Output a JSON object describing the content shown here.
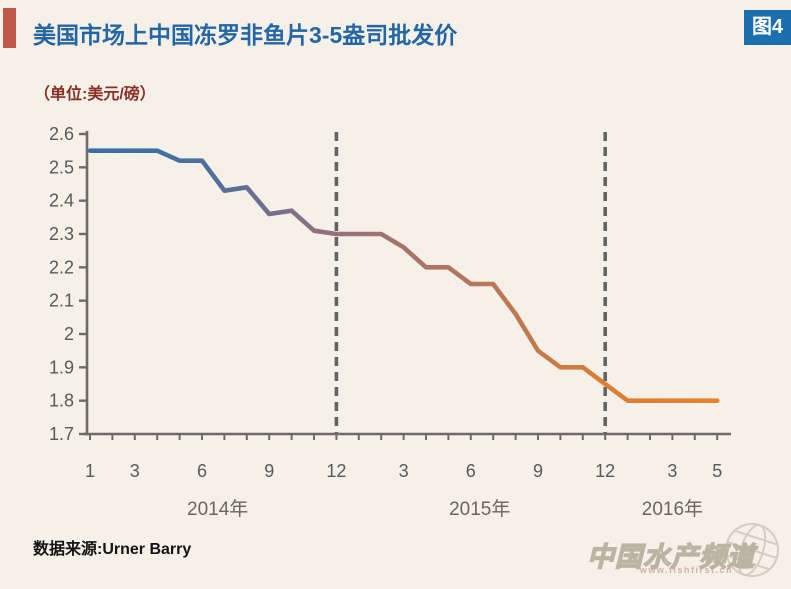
{
  "page": {
    "background": "#f5f1e8"
  },
  "header": {
    "title": "美国市场上中国冻罗非鱼片3-5盎司批发价",
    "badge": "图4",
    "accent_color": "#bf5a4b",
    "title_color": "#2465a5",
    "badge_bg": "#1b6fae",
    "badge_text_color": "#ffffff"
  },
  "subtitle": {
    "text": "（单位:美元/磅）",
    "color": "#8a2f28"
  },
  "footer": {
    "source": "数据来源:Urner Barry"
  },
  "watermark": {
    "title": "中国水产频道",
    "url": "www.fishfirst.cn",
    "icon": "globe-icon"
  },
  "chart_data": {
    "type": "line",
    "title": "美国市场上中国冻罗非鱼片3-5盎司批发价",
    "ylabel": "美元/磅",
    "xlabel": "",
    "ylim": [
      1.7,
      2.6
    ],
    "grid": false,
    "legend": "none",
    "months": [
      "2014-01",
      "2014-02",
      "2014-03",
      "2014-04",
      "2014-05",
      "2014-06",
      "2014-07",
      "2014-08",
      "2014-09",
      "2014-10",
      "2014-11",
      "2014-12",
      "2015-01",
      "2015-02",
      "2015-03",
      "2015-04",
      "2015-05",
      "2015-06",
      "2015-07",
      "2015-08",
      "2015-09",
      "2015-10",
      "2015-11",
      "2015-12",
      "2016-01",
      "2016-02",
      "2016-03",
      "2016-04",
      "2016-05"
    ],
    "values": [
      2.55,
      2.55,
      2.55,
      2.55,
      2.52,
      2.52,
      2.43,
      2.44,
      2.36,
      2.37,
      2.31,
      2.3,
      2.3,
      2.3,
      2.26,
      2.2,
      2.2,
      2.15,
      2.15,
      2.06,
      1.95,
      1.9,
      1.9,
      1.85,
      1.8,
      1.8,
      1.8,
      1.8,
      1.8
    ],
    "y_ticks": [
      "2.6",
      "2.5",
      "2.4",
      "2.3",
      "2.2",
      "2.1",
      "2",
      "1.9",
      "1.8",
      "1.7"
    ],
    "x_tick_labels": [
      {
        "idx": 0,
        "label": "1"
      },
      {
        "idx": 2,
        "label": "3"
      },
      {
        "idx": 5,
        "label": "6"
      },
      {
        "idx": 8,
        "label": "9"
      },
      {
        "idx": 11,
        "label": "12"
      },
      {
        "idx": 14,
        "label": "3"
      },
      {
        "idx": 17,
        "label": "6"
      },
      {
        "idx": 20,
        "label": "9"
      },
      {
        "idx": 23,
        "label": "12"
      },
      {
        "idx": 26,
        "label": "3"
      },
      {
        "idx": 28,
        "label": "5"
      }
    ],
    "year_labels": [
      {
        "label": "2014年",
        "idx": 5.7
      },
      {
        "label": "2015年",
        "idx": 17.4
      },
      {
        "label": "2016年",
        "idx": 26
      }
    ],
    "dashed_lines_at": [
      11,
      23
    ],
    "line_gradient": [
      {
        "offset": "0%",
        "color": "#3a6fa6"
      },
      {
        "offset": "10%",
        "color": "#3f70a4"
      },
      {
        "offset": "21%",
        "color": "#566e9c"
      },
      {
        "offset": "39%",
        "color": "#9a707b"
      },
      {
        "offset": "50%",
        "color": "#a6736c"
      },
      {
        "offset": "68%",
        "color": "#bf7851"
      },
      {
        "offset": "82%",
        "color": "#d97e33"
      },
      {
        "offset": "100%",
        "color": "#e8832a"
      }
    ],
    "colors": {
      "axis": "#6e6a66",
      "tick_text": "#595959",
      "year_text": "#6b655f",
      "dashed": "#636363"
    }
  }
}
